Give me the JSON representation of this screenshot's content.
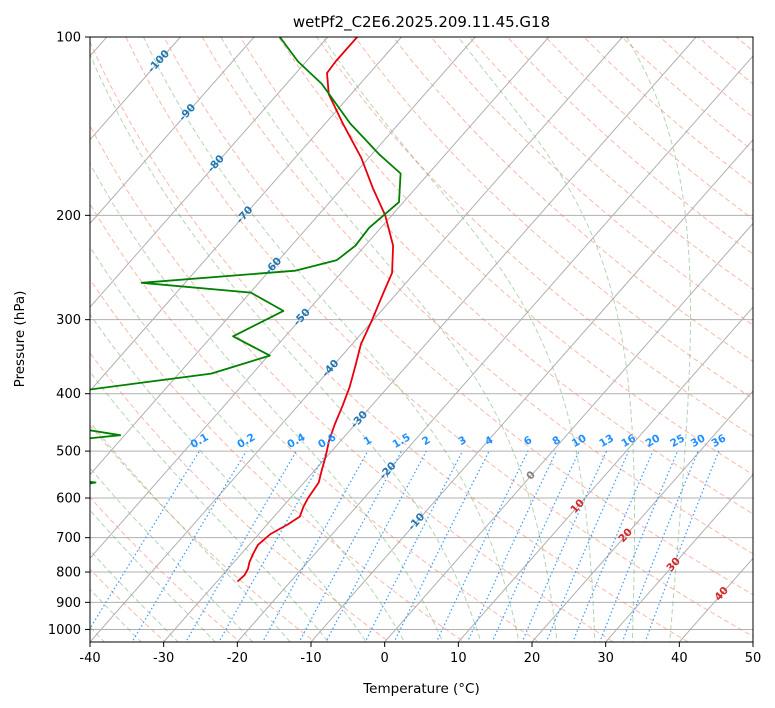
{
  "chart_data": {
    "type": "line",
    "subtype": "skew-T log-P diagram",
    "title": "wetPf2_C2E6.2025.209.11.45.G18",
    "xlabel": "Temperature (°C)",
    "ylabel": "Pressure (hPa)",
    "xlim": [
      -40,
      50
    ],
    "ylim": [
      1050,
      100
    ],
    "yscale": "log",
    "grid": true,
    "x_ticks": [
      "-40",
      "-30",
      "-20",
      "-10",
      "0",
      "10",
      "20",
      "30",
      "40",
      "50"
    ],
    "y_ticks": [
      "100",
      "200",
      "300",
      "400",
      "500",
      "600",
      "700",
      "800",
      "900",
      "1000"
    ],
    "series": [
      {
        "role": "temperature",
        "color": "#e8000b",
        "points": [
          [
            -27.2,
            830
          ],
          [
            -27.0,
            810
          ],
          [
            -27.3,
            790
          ],
          [
            -27.9,
            770
          ],
          [
            -28.4,
            745
          ],
          [
            -28.8,
            720
          ],
          [
            -28.4,
            690
          ],
          [
            -27.2,
            665
          ],
          [
            -26.5,
            645
          ],
          [
            -27.2,
            620
          ],
          [
            -27.6,
            600
          ],
          [
            -28.0,
            565
          ],
          [
            -29.0,
            540
          ],
          [
            -30.2,
            510
          ],
          [
            -31.6,
            480
          ],
          [
            -32.8,
            450
          ],
          [
            -33.9,
            420
          ],
          [
            -35.2,
            390
          ],
          [
            -36.9,
            360
          ],
          [
            -38.8,
            330
          ],
          [
            -40.2,
            300
          ],
          [
            -41.9,
            270
          ],
          [
            -43.1,
            250
          ],
          [
            -46.2,
            225
          ],
          [
            -50.9,
            200
          ],
          [
            -55.8,
            180
          ],
          [
            -61.0,
            160
          ],
          [
            -67.6,
            140
          ],
          [
            -73.0,
            125
          ],
          [
            -75.8,
            115
          ],
          [
            -76.0,
            110
          ],
          [
            -76.0,
            100
          ]
        ]
      },
      {
        "role": "dewpoint",
        "color": "#008000",
        "points": [
          [
            -60.4,
            830
          ],
          [
            -66.5,
            825
          ],
          [
            -69.5,
            820
          ],
          [
            -67.0,
            815
          ],
          [
            -59.0,
            810
          ],
          [
            -55.0,
            800
          ],
          [
            -59.0,
            785
          ],
          [
            -67.0,
            770
          ],
          [
            -73.0,
            755
          ],
          [
            -79.0,
            740
          ],
          [
            -93.0,
            695
          ],
          [
            -78.0,
            690
          ],
          [
            -74.0,
            670
          ],
          [
            -70.4,
            650
          ],
          [
            -63.5,
            610
          ],
          [
            -65.8,
            595
          ],
          [
            -64.5,
            585
          ],
          [
            -58.3,
            565
          ],
          [
            -69.0,
            545
          ],
          [
            -83.0,
            530
          ],
          [
            -95.0,
            515
          ],
          [
            -80.0,
            500
          ],
          [
            -60.6,
            470
          ],
          [
            -77.0,
            440
          ],
          [
            -88.6,
            410
          ],
          [
            -74.0,
            400
          ],
          [
            -55.6,
            370
          ],
          [
            -49.8,
            345
          ],
          [
            -57.1,
            320
          ],
          [
            -53.3,
            290
          ],
          [
            -59.9,
            270
          ],
          [
            -75.9,
            260
          ],
          [
            -56.5,
            248
          ],
          [
            -52.1,
            238
          ],
          [
            -51.3,
            225
          ],
          [
            -51.6,
            210
          ],
          [
            -50.6,
            190
          ],
          [
            -53.8,
            170
          ],
          [
            -58.9,
            158
          ],
          [
            -66.6,
            140
          ],
          [
            -75.2,
            120
          ],
          [
            -81.1,
            110
          ],
          [
            -86.5,
            100
          ]
        ]
      }
    ],
    "background_lines": {
      "isotherms_solid_grey": "every 10 °C",
      "dry_adiabats": "orange dashed",
      "moist_adiabats": "green dashed",
      "mixing_ratio": "blue dotted"
    },
    "annotations": {
      "isotherm_labels": [
        "-100",
        "-90",
        "-80",
        "-70",
        "-60",
        "-50",
        "-40",
        "-30",
        "-20",
        "-10"
      ],
      "mixing_ratio_labels": [
        "0.1",
        "0.2",
        "0.4",
        "0.6",
        "1",
        "1.5",
        "2",
        "3",
        "4",
        "6",
        "8",
        "10",
        "13",
        "16",
        "20",
        "25",
        "30",
        "36"
      ],
      "other_isotherm_labels": [
        "0"
      ],
      "warm_isotherm_labels": [
        "10",
        "20",
        "30",
        "40"
      ]
    },
    "colors": {
      "isotherm_label": "#1f77b4",
      "zero_label": "#808080",
      "warm_label": "#d62728",
      "mixing_ratio": "#1e90ff",
      "dry_adiabat": "#f08060",
      "moist_adiabat": "#5aa05a",
      "grid": "#b0b0b0"
    }
  }
}
